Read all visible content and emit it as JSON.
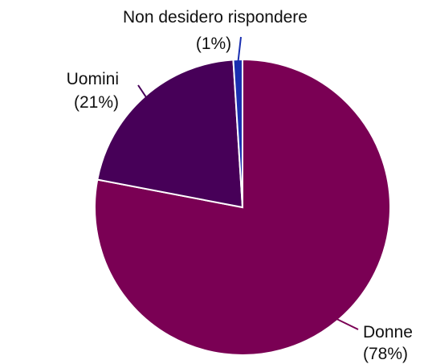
{
  "chart_data": {
    "type": "pie",
    "slices": [
      {
        "label": "Donne",
        "value": 78,
        "value_label": "(78%)",
        "color": "#7a0054"
      },
      {
        "label": "Uomini",
        "value": 21,
        "value_label": "(21%)",
        "color": "#470058"
      },
      {
        "label": "Non desidero rispondere",
        "value": 1,
        "value_label": "(1%)",
        "color": "#1a2fb0"
      }
    ],
    "title": "",
    "legend": "none",
    "slice_border_color": "#ffffff"
  }
}
